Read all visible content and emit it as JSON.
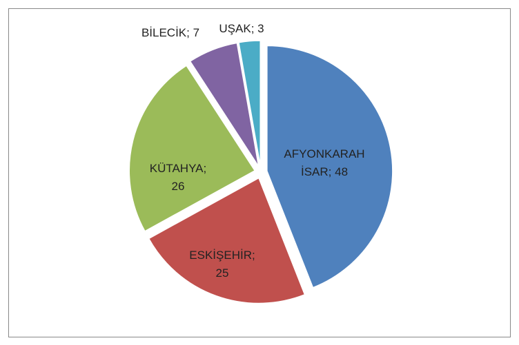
{
  "chart_data": {
    "type": "pie",
    "categories": [
      "AFYONKARAHİSAR",
      "ESKİŞEHİR",
      "KÜTAHYA",
      "BİLECİK",
      "UŞAK"
    ],
    "values": [
      48,
      25,
      26,
      7,
      3
    ],
    "colors": [
      "#4f81bd",
      "#c0504d",
      "#9bbb59",
      "#8064a2",
      "#4bacc6"
    ],
    "label_separator": "; "
  }
}
